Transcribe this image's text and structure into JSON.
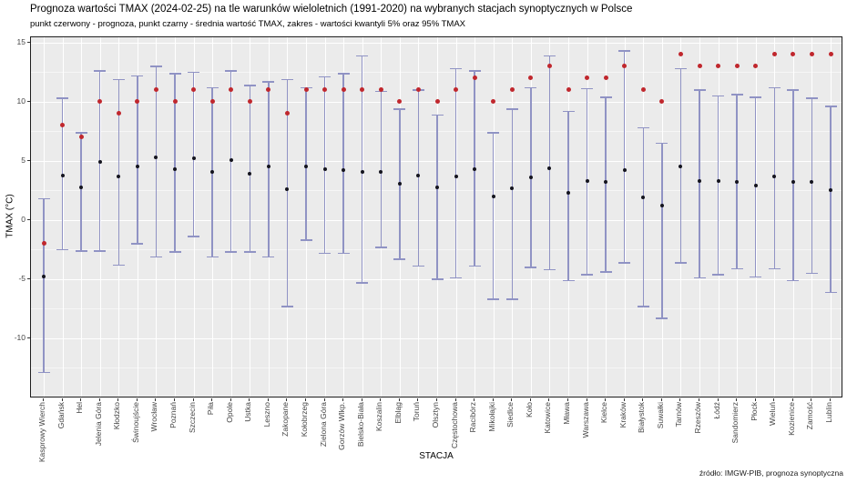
{
  "title": "Prognoza wartości TMAX (2024-02-25) na tle warunków wieloletnich (1991-2020) na wybranych stacjach synoptycznych w Polsce",
  "subtitle": "punkt czerwony - prognoza, punkt czarny - średnia wartość TMAX, zakres - wartości kwantyli 5% oraz 95% TMAX",
  "footer": "źródło: IMGW-PIB, prognoza synoptyczna",
  "chart_data": {
    "type": "scatter",
    "subtype": "pointrange",
    "title": "Prognoza wartości TMAX (2024-02-25) na tle warunków wieloletnich (1991-2020) na wybranych stacjach synoptycznych w Polsce",
    "xlabel": "STACJA",
    "ylabel": "TMAX (°C)",
    "ylim": [
      -15.1,
      15.5
    ],
    "yticks": [
      15,
      10,
      5,
      0,
      -5,
      -10
    ],
    "yticks_minor": [
      12.5,
      7.5,
      2.5,
      -2.5,
      -7.5,
      -12.5
    ],
    "grid": true,
    "legend_position": "none",
    "colors": {
      "forecast_point": "#c0272d",
      "mean_point": "#14141e",
      "range_bar": "#9093c4",
      "panel_bg": "#ebebeb"
    },
    "categories": [
      "Kasprowy Wierch",
      "Gdańsk",
      "Hel",
      "Jelenia Góra",
      "Kłodzko",
      "Świnoujście",
      "Wrocław",
      "Poznań",
      "Szczecin",
      "Piła",
      "Opole",
      "Ustka",
      "Leszno",
      "Zakopane",
      "Kołobrzeg",
      "Zielona Góra",
      "Gorzów Wlkp.",
      "Bielsko-Biała",
      "Koszalin",
      "Elbląg",
      "Toruń",
      "Olsztyn",
      "Częstochowa",
      "Racibórz",
      "Mikołajki",
      "Siedlce",
      "Koło",
      "Katowice",
      "Mława",
      "Warszawa",
      "Kielce",
      "Kraków",
      "Białystok",
      "Suwałki",
      "Tarnów",
      "Rzeszów",
      "Łódź",
      "Sandomierz",
      "Płock",
      "Wieluń",
      "Kozienice",
      "Zamość",
      "Lublin"
    ],
    "series": [
      {
        "name": "prognoza (punkt czerwony)",
        "values": [
          -2,
          8,
          7,
          10,
          9,
          10,
          11,
          10,
          11,
          10,
          11,
          10,
          11,
          9,
          11,
          11,
          11,
          11,
          11,
          10,
          11,
          10,
          11,
          12,
          10,
          11,
          12,
          13,
          11,
          12,
          12,
          13,
          11,
          10,
          14,
          13,
          13,
          13,
          13,
          14,
          14,
          14,
          14
        ]
      },
      {
        "name": "średnia wartość TMAX (punkt czarny)",
        "values": [
          -4.8,
          3.8,
          2.8,
          4.9,
          3.7,
          4.5,
          5.3,
          4.3,
          5.2,
          4.1,
          5.1,
          3.9,
          4.5,
          2.6,
          4.5,
          4.3,
          4.2,
          4.1,
          4.1,
          3.1,
          3.8,
          2.8,
          3.7,
          4.3,
          2.0,
          2.7,
          3.6,
          4.4,
          2.3,
          3.3,
          3.2,
          4.2,
          1.9,
          1.2,
          4.5,
          3.3,
          3.3,
          3.2,
          2.9,
          3.7,
          3.2,
          3.2,
          2.5
        ]
      },
      {
        "name": "kwantyl 5% TMAX (dolny zakres)",
        "values": [
          -12.9,
          -2.5,
          -2.6,
          -2.6,
          -3.8,
          -2.0,
          -3.1,
          -2.7,
          -1.4,
          -3.1,
          -2.7,
          -2.7,
          -3.1,
          -7.3,
          -1.7,
          -2.8,
          -2.8,
          -5.3,
          -2.3,
          -3.3,
          -3.9,
          -5.0,
          -4.9,
          -3.9,
          -6.7,
          -6.7,
          -4.0,
          -4.2,
          -5.1,
          -4.6,
          -4.4,
          -3.6,
          -7.3,
          -8.3,
          -3.6,
          -4.9,
          -4.6,
          -4.1,
          -4.8,
          -4.1,
          -5.1,
          -4.5,
          -6.1
        ]
      },
      {
        "name": "kwantyl 95% TMAX (górny zakres)",
        "values": [
          1.8,
          10.3,
          7.4,
          12.6,
          11.9,
          12.2,
          13.0,
          12.4,
          12.5,
          11.2,
          12.6,
          11.4,
          11.7,
          11.9,
          11.2,
          12.1,
          12.4,
          13.9,
          10.9,
          9.4,
          11.0,
          8.9,
          12.8,
          12.6,
          7.4,
          9.4,
          11.2,
          13.9,
          9.2,
          11.1,
          10.4,
          14.3,
          7.8,
          6.5,
          12.8,
          11.0,
          10.5,
          10.6,
          10.4,
          11.2,
          11.0,
          10.3,
          9.6
        ]
      }
    ]
  }
}
